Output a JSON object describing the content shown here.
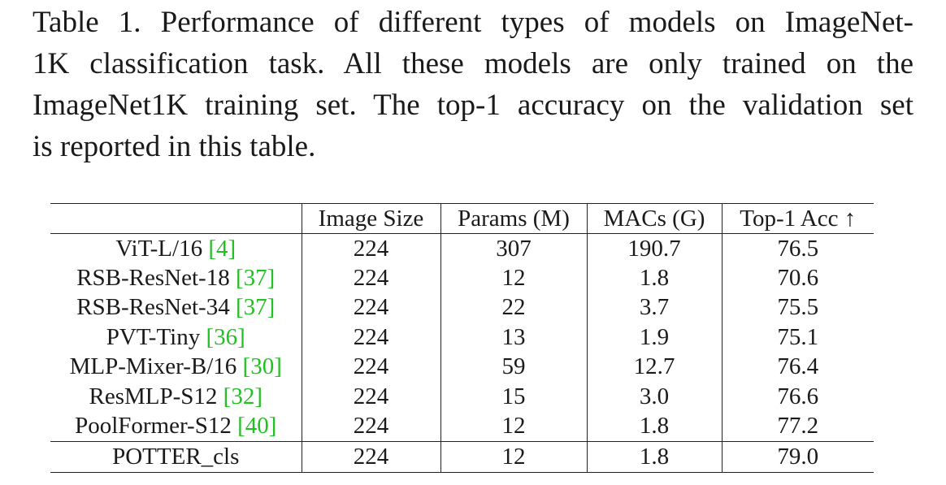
{
  "caption": {
    "lines": [
      "Table 1. Performance of different types of models on ImageNet-",
      "1K classification task.  All these models are only trained on the",
      "ImageNet1K training set. The top-1 accuracy on the validation set",
      "is reported in this table."
    ]
  },
  "table": {
    "headers": [
      "",
      "Image Size",
      "Params (M)",
      "MACs (G)",
      "Top-1 Acc ↑"
    ],
    "rows": [
      {
        "model": "ViT-L/16 ",
        "ref": "[4]",
        "image_size": "224",
        "params": "307",
        "macs": "190.7",
        "top1": "76.5"
      },
      {
        "model": "RSB-ResNet-18 ",
        "ref": "[37]",
        "image_size": "224",
        "params": "12",
        "macs": "1.8",
        "top1": "70.6"
      },
      {
        "model": "RSB-ResNet-34 ",
        "ref": "[37]",
        "image_size": "224",
        "params": "22",
        "macs": "3.7",
        "top1": "75.5"
      },
      {
        "model": "PVT-Tiny ",
        "ref": "[36]",
        "image_size": "224",
        "params": "13",
        "macs": "1.9",
        "top1": "75.1"
      },
      {
        "model": "MLP-Mixer-B/16 ",
        "ref": "[30]",
        "image_size": "224",
        "params": "59",
        "macs": "12.7",
        "top1": "76.4"
      },
      {
        "model": "ResMLP-S12 ",
        "ref": "[32]",
        "image_size": "224",
        "params": "15",
        "macs": "3.0",
        "top1": "76.6"
      },
      {
        "model": "PoolFormer-S12 ",
        "ref": "[40]",
        "image_size": "224",
        "params": "12",
        "macs": "1.8",
        "top1": "77.2"
      }
    ],
    "highlight_row": {
      "model": "POTTER_cls",
      "image_size": "224",
      "params": "12",
      "macs": "1.8",
      "top1": "79.0"
    }
  },
  "colors": {
    "reference_link": "#22c022",
    "text": "#1a1a1a"
  }
}
